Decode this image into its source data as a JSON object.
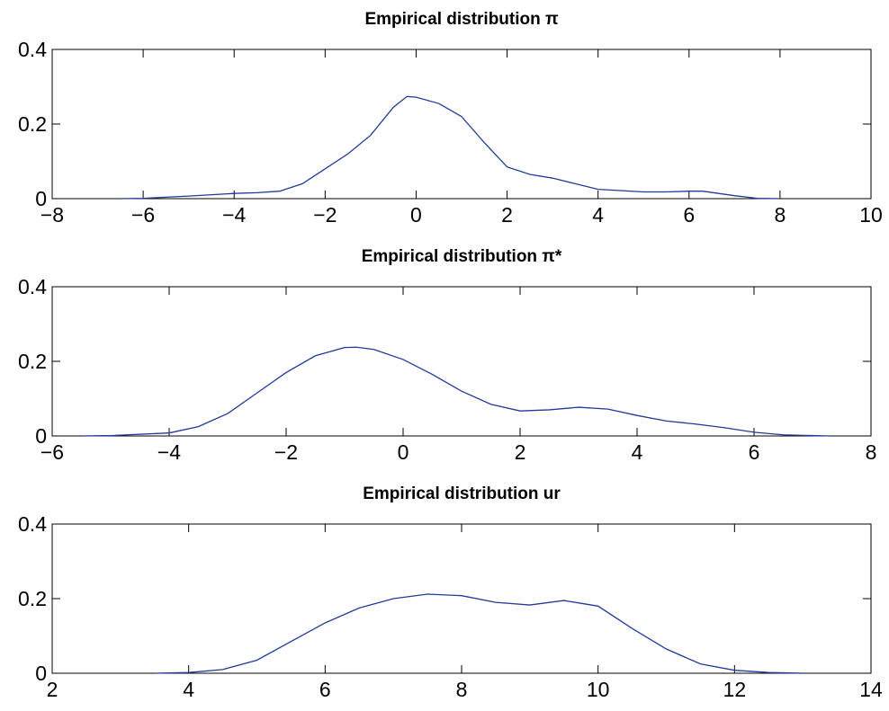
{
  "chart_data": [
    {
      "type": "line",
      "title": "Empirical distribution π",
      "color": "#1f3c99",
      "x": [
        -6.5,
        -6,
        -5,
        -4,
        -3.5,
        -3,
        -2.5,
        -2,
        -1.5,
        -1,
        -0.5,
        -0.2,
        0,
        0.5,
        1,
        1.5,
        2,
        2.5,
        3,
        3.5,
        4,
        5,
        5.5,
        6,
        6.3,
        7,
        7.5,
        8
      ],
      "values": [
        0,
        0.001,
        0.007,
        0.014,
        0.016,
        0.02,
        0.04,
        0.08,
        0.12,
        0.17,
        0.245,
        0.274,
        0.272,
        0.255,
        0.22,
        0.15,
        0.085,
        0.065,
        0.055,
        0.04,
        0.025,
        0.018,
        0.018,
        0.02,
        0.02,
        0.008,
        0.001,
        0
      ],
      "xlim": [
        -8,
        10
      ],
      "xticks": [
        {
          "value": -8,
          "label": "−8"
        },
        {
          "value": -6,
          "label": "−6"
        },
        {
          "value": -4,
          "label": "−4"
        },
        {
          "value": -2,
          "label": "−2"
        },
        0,
        2,
        4,
        6,
        8,
        10
      ],
      "ylim": [
        0,
        0.4
      ],
      "yticks": [
        0,
        0.2,
        0.4
      ]
    },
    {
      "type": "line",
      "title": "Empirical distribution π*",
      "color": "#1f3c99",
      "x": [
        -5.5,
        -5,
        -4,
        -3.5,
        -3,
        -2.5,
        -2,
        -1.5,
        -1,
        -0.8,
        -0.5,
        0,
        0.5,
        1,
        1.5,
        2,
        2.5,
        3,
        3.5,
        4,
        4.5,
        5,
        5.5,
        6,
        6.5,
        7,
        7.3
      ],
      "values": [
        0,
        0.001,
        0.008,
        0.025,
        0.06,
        0.115,
        0.17,
        0.215,
        0.237,
        0.238,
        0.232,
        0.205,
        0.165,
        0.12,
        0.085,
        0.067,
        0.07,
        0.077,
        0.072,
        0.055,
        0.04,
        0.032,
        0.022,
        0.01,
        0.003,
        0.001,
        0
      ],
      "xlim": [
        -6,
        8
      ],
      "xticks": [
        {
          "value": -6,
          "label": "−6"
        },
        {
          "value": -4,
          "label": "−4"
        },
        {
          "value": -2,
          "label": "−2"
        },
        0,
        2,
        4,
        6,
        8
      ],
      "ylim": [
        0,
        0.4
      ],
      "yticks": [
        0,
        0.2,
        0.4
      ]
    },
    {
      "type": "line",
      "title": "Empirical distribution ur",
      "color": "#1f3c99",
      "x": [
        3.5,
        4,
        4.5,
        5,
        5.5,
        6,
        6.5,
        7,
        7.5,
        8,
        8.5,
        9,
        9.5,
        10,
        10.5,
        11,
        11.5,
        12,
        12.5,
        13
      ],
      "values": [
        0,
        0.002,
        0.01,
        0.035,
        0.085,
        0.135,
        0.175,
        0.2,
        0.212,
        0.208,
        0.19,
        0.183,
        0.195,
        0.18,
        0.12,
        0.065,
        0.025,
        0.008,
        0.002,
        0
      ],
      "xlim": [
        2,
        14
      ],
      "xticks": [
        2,
        4,
        6,
        8,
        10,
        12,
        14
      ],
      "ylim": [
        0,
        0.4
      ],
      "yticks": [
        0,
        0.2,
        0.4
      ]
    }
  ]
}
